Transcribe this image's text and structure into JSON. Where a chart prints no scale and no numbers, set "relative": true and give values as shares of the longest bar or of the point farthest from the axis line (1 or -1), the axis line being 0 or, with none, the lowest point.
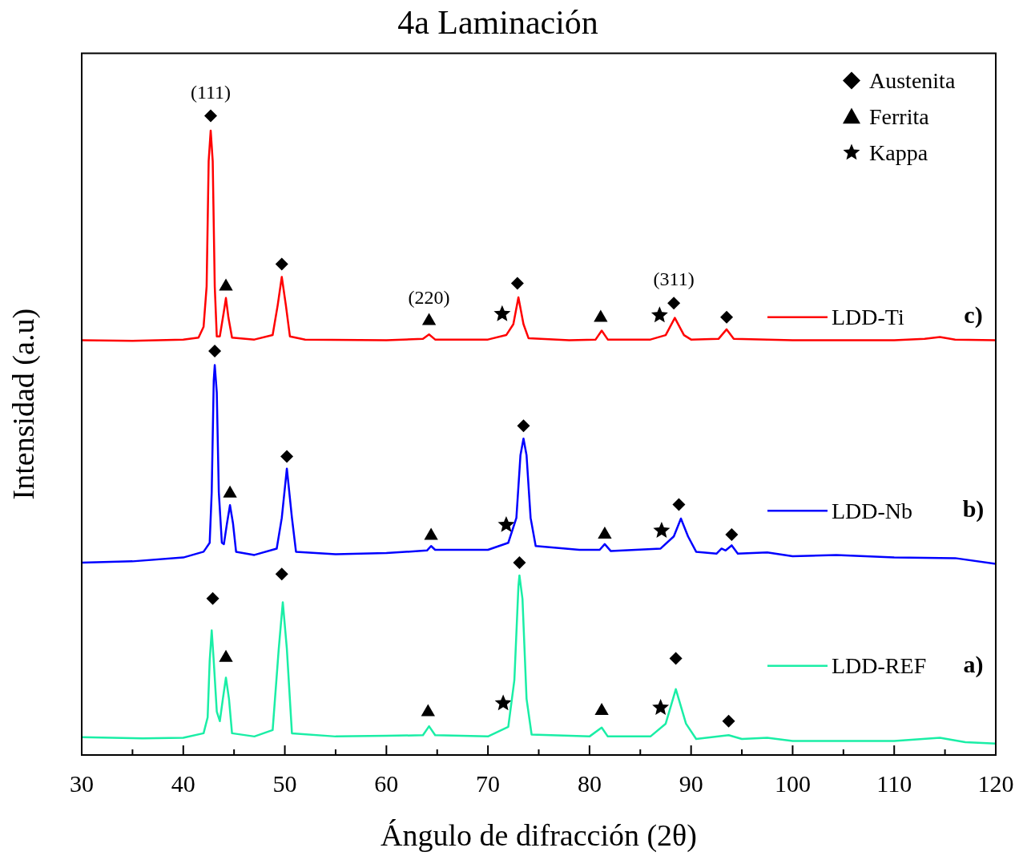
{
  "chart_data": {
    "type": "line",
    "title": "4a Laminación",
    "xlabel": "Ángulo de difracción (2θ)",
    "ylabel": "Intensidad (a.u)",
    "relative": true,
    "tick_labels": "x",
    "legend": "top right",
    "xlim": [
      30,
      120
    ],
    "xticks": [
      30,
      {
        "value": 35,
        "label": null
      },
      40,
      {
        "value": 45,
        "label": null
      },
      50,
      {
        "value": 55,
        "label": null
      },
      60,
      {
        "value": 65,
        "label": null
      },
      70,
      {
        "value": 75,
        "label": null
      },
      80,
      {
        "value": 85,
        "label": null
      },
      90,
      {
        "value": 95,
        "label": null
      },
      100,
      {
        "value": 105,
        "label": null
      },
      110,
      {
        "value": 115,
        "label": null
      },
      120
    ],
    "series": [
      {
        "name": "LDD-Ti",
        "color": "#ff0000",
        "x": [
          30,
          35,
          40,
          41.5,
          42.0,
          42.3,
          42.5,
          42.7,
          42.9,
          43.1,
          43.3,
          43.6,
          44.0,
          44.2,
          44.45,
          44.8,
          47,
          48.8,
          49.3,
          49.7,
          50.1,
          50.5,
          52,
          60,
          63.6,
          64.2,
          64.8,
          70,
          71.8,
          72.5,
          73.0,
          73.5,
          74,
          78,
          80.6,
          81.2,
          81.8,
          86,
          87.5,
          88.4,
          89.3,
          90,
          92.7,
          93.5,
          94.2,
          100,
          110,
          113,
          114.5,
          116,
          120
        ],
        "values": [
          0.649,
          0.648,
          0.65,
          0.653,
          0.67,
          0.733,
          0.929,
          0.977,
          0.929,
          0.733,
          0.655,
          0.655,
          0.694,
          0.715,
          0.684,
          0.653,
          0.65,
          0.657,
          0.704,
          0.748,
          0.704,
          0.655,
          0.65,
          0.649,
          0.651,
          0.658,
          0.65,
          0.65,
          0.657,
          0.674,
          0.716,
          0.674,
          0.652,
          0.649,
          0.65,
          0.664,
          0.65,
          0.65,
          0.657,
          0.684,
          0.657,
          0.65,
          0.651,
          0.666,
          0.651,
          0.649,
          0.649,
          0.651,
          0.654,
          0.65,
          0.649
        ]
      },
      {
        "name": "LDD-Nb",
        "color": "#0000ff",
        "x": [
          30,
          35,
          40,
          42,
          42.6,
          42.8,
          43.0,
          43.1,
          43.3,
          43.5,
          43.8,
          44.0,
          44.3,
          44.6,
          44.9,
          45.2,
          47,
          49.2,
          49.7,
          50.2,
          50.7,
          51.1,
          55,
          60,
          64.0,
          64.4,
          64.8,
          70,
          72,
          72.8,
          73.2,
          73.5,
          73.8,
          74.2,
          74.7,
          79,
          81.0,
          81.5,
          82.1,
          87,
          88.3,
          89.0,
          89.7,
          90.5,
          92.5,
          93.0,
          93.4,
          94.0,
          94.6,
          97.5,
          100,
          104.3,
          110,
          116,
          120
        ],
        "values": [
          0.301,
          0.303,
          0.309,
          0.318,
          0.332,
          0.411,
          0.586,
          0.61,
          0.567,
          0.411,
          0.332,
          0.33,
          0.362,
          0.391,
          0.362,
          0.318,
          0.313,
          0.323,
          0.371,
          0.448,
          0.371,
          0.318,
          0.314,
          0.316,
          0.32,
          0.327,
          0.321,
          0.321,
          0.332,
          0.371,
          0.469,
          0.495,
          0.469,
          0.371,
          0.327,
          0.321,
          0.321,
          0.33,
          0.319,
          0.323,
          0.342,
          0.37,
          0.342,
          0.318,
          0.315,
          0.323,
          0.32,
          0.328,
          0.315,
          0.317,
          0.311,
          0.313,
          0.309,
          0.308,
          0.299
        ]
      },
      {
        "name": "LDD-REF",
        "color": "#1aeea6",
        "x": [
          30,
          36,
          40,
          42,
          42.4,
          42.6,
          42.8,
          43.0,
          43.3,
          43.6,
          43.9,
          44.2,
          44.5,
          44.8,
          47,
          48.8,
          49.4,
          49.8,
          50.2,
          50.7,
          55,
          60,
          63.6,
          64.2,
          64.8,
          70,
          72,
          72.6,
          73.0,
          73.1,
          73.4,
          73.8,
          74.3,
          80,
          81.2,
          81.8,
          86,
          87.5,
          88.5,
          89.5,
          90.5,
          93.7,
          95,
          97.5,
          100,
          110,
          114.5,
          117,
          120
        ],
        "values": [
          0.028,
          0.026,
          0.027,
          0.034,
          0.059,
          0.147,
          0.195,
          0.147,
          0.068,
          0.053,
          0.088,
          0.121,
          0.088,
          0.034,
          0.029,
          0.039,
          0.166,
          0.239,
          0.166,
          0.034,
          0.029,
          0.03,
          0.031,
          0.045,
          0.031,
          0.029,
          0.044,
          0.117,
          0.264,
          0.281,
          0.244,
          0.088,
          0.032,
          0.029,
          0.043,
          0.029,
          0.029,
          0.049,
          0.103,
          0.049,
          0.025,
          0.031,
          0.025,
          0.027,
          0.022,
          0.022,
          0.027,
          0.02,
          0.018
        ]
      },
      {
        "name": "Austenita",
        "type": "scatter",
        "color": "#000000",
        "marker": "diamond",
        "x": [
          42.7,
          49.7,
          72.9,
          88.3,
          93.5,
          43.1,
          50.2,
          73.5,
          88.8,
          94.0,
          42.9,
          49.7,
          73.1,
          88.5,
          93.7
        ],
        "values": [
          1.0,
          0.768,
          0.738,
          0.707,
          0.685,
          0.632,
          0.467,
          0.515,
          0.392,
          0.345,
          0.245,
          0.283,
          0.301,
          0.151,
          0.053
        ]
      },
      {
        "name": "Ferrita",
        "type": "scatter",
        "color": "#000000",
        "marker": "triangle",
        "x": [
          44.2,
          64.2,
          81.1,
          44.6,
          64.4,
          81.5,
          44.2,
          64.1,
          81.2
        ],
        "values": [
          0.733,
          0.679,
          0.684,
          0.409,
          0.343,
          0.345,
          0.152,
          0.067,
          0.069
        ]
      },
      {
        "name": "Kappa",
        "type": "scatter",
        "color": "#000000",
        "marker": "star",
        "x": [
          71.4,
          86.9,
          71.8,
          87.1,
          71.5,
          87.0
        ],
        "values": [
          0.69,
          0.688,
          0.36,
          0.351,
          0.081,
          0.074
        ]
      }
    ],
    "annotations": [
      "c)",
      "b)",
      "a)",
      {
        "text": "(111)",
        "x": 42.7,
        "y": 1.0
      },
      {
        "text": "(220)",
        "x": 64.2,
        "y": 0.679
      },
      {
        "text": "(311)",
        "x": 88.3,
        "y": 0.707
      }
    ]
  }
}
